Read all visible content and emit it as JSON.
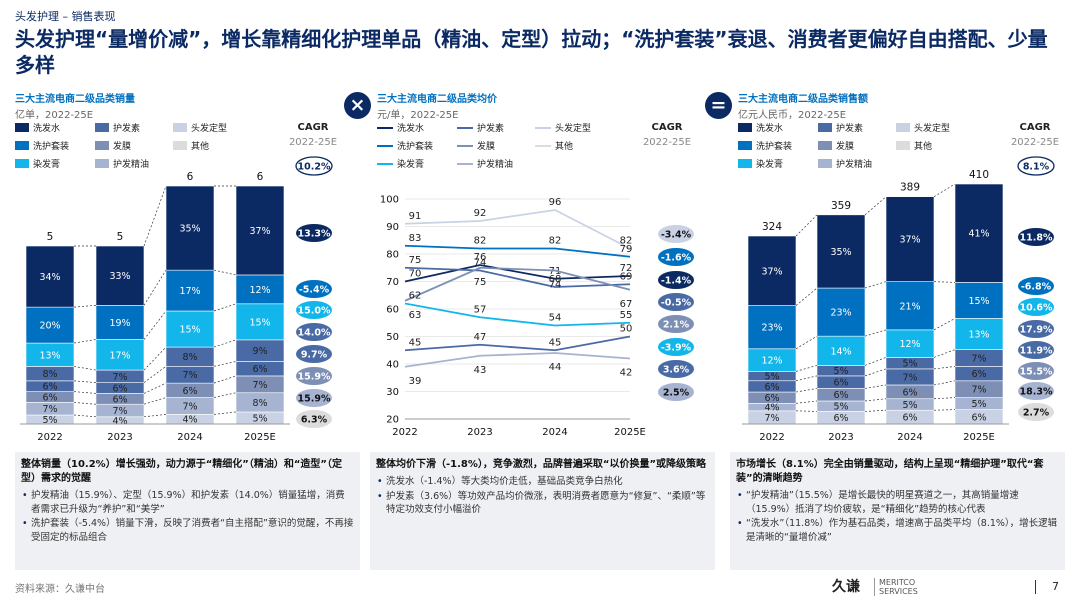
{
  "header": {
    "breadcrumb": "头发护理 – 销售表现",
    "title": "头发护理“量增价减”，增长靠精细化护理单品（精油、定型）拉动；“洗护套装”衰退、消费者更偏好自由搭配、少量多样"
  },
  "operators": {
    "multiply": "×",
    "equals": "="
  },
  "colors": {
    "wash": "#0b2a63",
    "set": "#0070c0",
    "dye": "#12b6ea",
    "care": "#4a6aa5",
    "cond": "#7d8fb5",
    "oil": "#a6b4d1",
    "style": "#c9d2e4",
    "other": "#dcdcdc"
  },
  "panels": [
    {
      "title": "三大主流电商二级品类销量",
      "unit": "亿单，2022-25E",
      "legend": [
        "洗发水",
        "护发素",
        "头发定型",
        "洗护套装",
        "发膜",
        "其他",
        "染发膏",
        "护发精油"
      ],
      "cagr_header": "CAGR",
      "cagr_sub": "2022-25E",
      "cagr_total": "10.2%"
    },
    {
      "title": "三大主流电商二级品类均价",
      "unit": "元/单，2022-25E",
      "legend": [
        "洗发水",
        "护发素",
        "头发定型",
        "洗护套装",
        "发膜",
        "其他",
        "染发膏",
        "护发精油"
      ],
      "cagr_header": "CAGR",
      "cagr_sub": "2022-25E"
    },
    {
      "title": "三大主流电商二级品类销售额",
      "unit": "亿元人民币，2022-25E",
      "legend": [
        "洗发水",
        "护发素",
        "头发定型",
        "洗护套装",
        "发膜",
        "其他",
        "染发膏",
        "护发精油"
      ],
      "cagr_header": "CAGR",
      "cagr_sub": "2022-25E",
      "cagr_total": "8.1%"
    }
  ],
  "chart_data": [
    {
      "type": "bar",
      "title": "三大主流电商二级品类销量",
      "ylabel": "亿单",
      "categories": [
        "2022",
        "2023",
        "2024",
        "2025E"
      ],
      "totals": [
        "5",
        "5",
        "6",
        "6"
      ],
      "total_values": [
        5,
        5,
        6,
        6
      ],
      "series": [
        {
          "name": "头发定型",
          "color_key": "style",
          "labels": [
            "5%",
            "4%",
            "4%",
            "5%"
          ],
          "values": [
            5,
            4,
            4,
            5
          ],
          "cagr": "6.3%"
        },
        {
          "name": "护发精油",
          "color_key": "oil",
          "labels": [
            "7%",
            "7%",
            "7%",
            "8%"
          ],
          "values": [
            7,
            7,
            7,
            8
          ],
          "cagr": "15.9%"
        },
        {
          "name": "发膜",
          "color_key": "cond",
          "labels": [
            "6%",
            "6%",
            "6%",
            "7%"
          ],
          "values": [
            6,
            6,
            6,
            7
          ],
          "cagr": "15.9%"
        },
        {
          "name": "护发素",
          "color_key": "care",
          "labels": [
            "6%",
            "6%",
            "7%",
            "6%"
          ],
          "values": [
            6,
            6,
            7,
            6
          ],
          "cagr": "9.7%"
        },
        {
          "name": "其他",
          "color_key": "care",
          "labels": [
            "8%",
            "7%",
            "8%",
            "9%"
          ],
          "values": [
            8,
            7,
            8,
            9
          ],
          "cagr": "14.0%"
        },
        {
          "name": "染发膏",
          "color_key": "dye",
          "labels": [
            "13%",
            "17%",
            "15%",
            "15%"
          ],
          "values": [
            13,
            17,
            15,
            15
          ],
          "cagr": "15.0%"
        },
        {
          "name": "洗护套装",
          "color_key": "set",
          "labels": [
            "20%",
            "19%",
            "17%",
            "12%"
          ],
          "values": [
            20,
            19,
            17,
            12
          ],
          "cagr": "-5.4%"
        },
        {
          "name": "洗发水",
          "color_key": "wash",
          "labels": [
            "34%",
            "33%",
            "35%",
            "37%"
          ],
          "values": [
            34,
            33,
            35,
            37
          ],
          "cagr": "13.3%"
        }
      ]
    },
    {
      "type": "line",
      "title": "三大主流电商二级品类均价",
      "ylabel": "元/单",
      "x": [
        "2022",
        "2023",
        "2024",
        "2025E"
      ],
      "ylim": [
        20,
        100
      ],
      "yticks": [
        20,
        30,
        40,
        50,
        60,
        70,
        80,
        90,
        100
      ],
      "series": [
        {
          "name": "头发定型",
          "color_key": "style",
          "values": [
            91,
            92,
            96,
            82
          ],
          "labels": [
            "91",
            "92",
            "96",
            "82"
          ],
          "cagr": "-3.4%"
        },
        {
          "name": "洗护套装",
          "color_key": "set",
          "values": [
            83,
            82,
            82,
            79
          ],
          "labels": [
            "83",
            "82",
            "82",
            "79"
          ],
          "cagr": "-1.6%"
        },
        {
          "name": "洗发水",
          "color_key": "wash",
          "values": [
            70,
            76,
            71,
            72
          ],
          "labels": [
            "70",
            "76",
            "71",
            "72"
          ],
          "cagr": "-1.4%"
        },
        {
          "name": "护发素",
          "color_key": "care",
          "values": [
            75,
            74,
            68,
            69
          ],
          "labels": [
            "75",
            "74",
            "68",
            "69"
          ],
          "cagr": "-0.5%"
        },
        {
          "name": "发膜",
          "color_key": "cond",
          "values": [
            63,
            75,
            74,
            67
          ],
          "labels": [
            "63",
            "75",
            "74",
            "67"
          ],
          "cagr": "2.1%"
        },
        {
          "name": "染发膏",
          "color_key": "dye",
          "values": [
            62,
            57,
            54,
            55
          ],
          "labels": [
            "62",
            "57",
            "54",
            "55"
          ],
          "cagr": "-3.9%"
        },
        {
          "name": "其他",
          "color_key": "care",
          "values": [
            45,
            47,
            45,
            50
          ],
          "labels": [
            "45",
            "47",
            "45",
            "50"
          ],
          "cagr": "3.6%"
        },
        {
          "name": "护发精油",
          "color_key": "oil",
          "values": [
            39,
            43,
            44,
            42
          ],
          "labels": [
            "39",
            "43",
            "44",
            "42"
          ],
          "cagr": "2.5%"
        }
      ]
    },
    {
      "type": "bar",
      "title": "三大主流电商二级品类销售额",
      "ylabel": "亿元人民币",
      "categories": [
        "2022",
        "2023",
        "2024",
        "2025E"
      ],
      "totals": [
        "324",
        "359",
        "389",
        "410"
      ],
      "total_values": [
        324,
        359,
        389,
        410
      ],
      "series": [
        {
          "name": "头发定型",
          "color_key": "style",
          "labels": [
            "7%",
            "6%",
            "6%",
            "6%"
          ],
          "values": [
            7,
            6,
            6,
            6
          ],
          "cagr": "2.7%"
        },
        {
          "name": "护发精油",
          "color_key": "oil",
          "labels": [
            "4%",
            "5%",
            "5%",
            "5%"
          ],
          "values": [
            4,
            5,
            5,
            5
          ],
          "cagr": "18.3%"
        },
        {
          "name": "发膜",
          "color_key": "cond",
          "labels": [
            "6%",
            "6%",
            "6%",
            "7%"
          ],
          "values": [
            6,
            6,
            6,
            7
          ],
          "cagr": "15.5%"
        },
        {
          "name": "护发素",
          "color_key": "care",
          "labels": [
            "6%",
            "6%",
            "7%",
            "6%"
          ],
          "values": [
            6,
            6,
            7,
            6
          ],
          "cagr": "11.9%"
        },
        {
          "name": "其他",
          "color_key": "care",
          "labels": [
            "5%",
            "5%",
            "5%",
            "7%"
          ],
          "values": [
            5,
            5,
            5,
            7
          ],
          "cagr": "17.9%"
        },
        {
          "name": "染发膏",
          "color_key": "dye",
          "labels": [
            "12%",
            "14%",
            "12%",
            "13%"
          ],
          "values": [
            12,
            14,
            12,
            13
          ],
          "cagr": "10.6%"
        },
        {
          "name": "洗护套装",
          "color_key": "set",
          "labels": [
            "23%",
            "23%",
            "21%",
            "15%"
          ],
          "values": [
            23,
            23,
            21,
            15
          ],
          "cagr": "-6.8%"
        },
        {
          "name": "洗发水",
          "color_key": "wash",
          "labels": [
            "37%",
            "35%",
            "37%",
            "41%"
          ],
          "values": [
            37,
            35,
            37,
            41
          ],
          "cagr": "11.8%"
        }
      ]
    }
  ],
  "takeaways": [
    {
      "head": "整体销量（10.2%）增长强劲，动力源于“精细化”（精油）和“造型”（定型）需求的觉醒",
      "bullets": [
        "护发精油（15.9%）、定型（15.9%）和护发素（14.0%）销量猛增，消费者需求已升级为“养护”和“美学”",
        "洗护套装（-5.4%）销量下滑，反映了消费者“自主搭配”意识的觉醒，不再接受固定的标品组合"
      ]
    },
    {
      "head": "整体均价下滑（-1.8%），竞争激烈，品牌普遍采取“以价换量”或降级策略",
      "bullets": [
        "洗发水（-1.4%）等大类均价走低，基础品类竞争白热化",
        "护发素（3.6%）等功效产品均价微涨，表明消费者愿意为“修复”、“柔顺”等特定功效支付小幅溢价"
      ]
    },
    {
      "head": "市场增长（8.1%）完全由销量驱动，结构上呈现“精细护理”取代“套装”的清晰趋势",
      "bullets": [
        "“护发精油”（15.5%）是增长最快的明星赛道之一，其高销量增速（15.9%）抵消了均价疲软，是“精细化”趋势的核心代表",
        "“洗发水”（11.8%）作为基石品类，增速高于品类平均（8.1%），增长逻辑是清晰的“量增价减”"
      ]
    }
  ],
  "footer": {
    "source": "资料来源：久谦中台",
    "logo_cn": "久谦",
    "logo_en_1": "MERITCO",
    "logo_en_2": "SERVICES",
    "page": "7"
  }
}
